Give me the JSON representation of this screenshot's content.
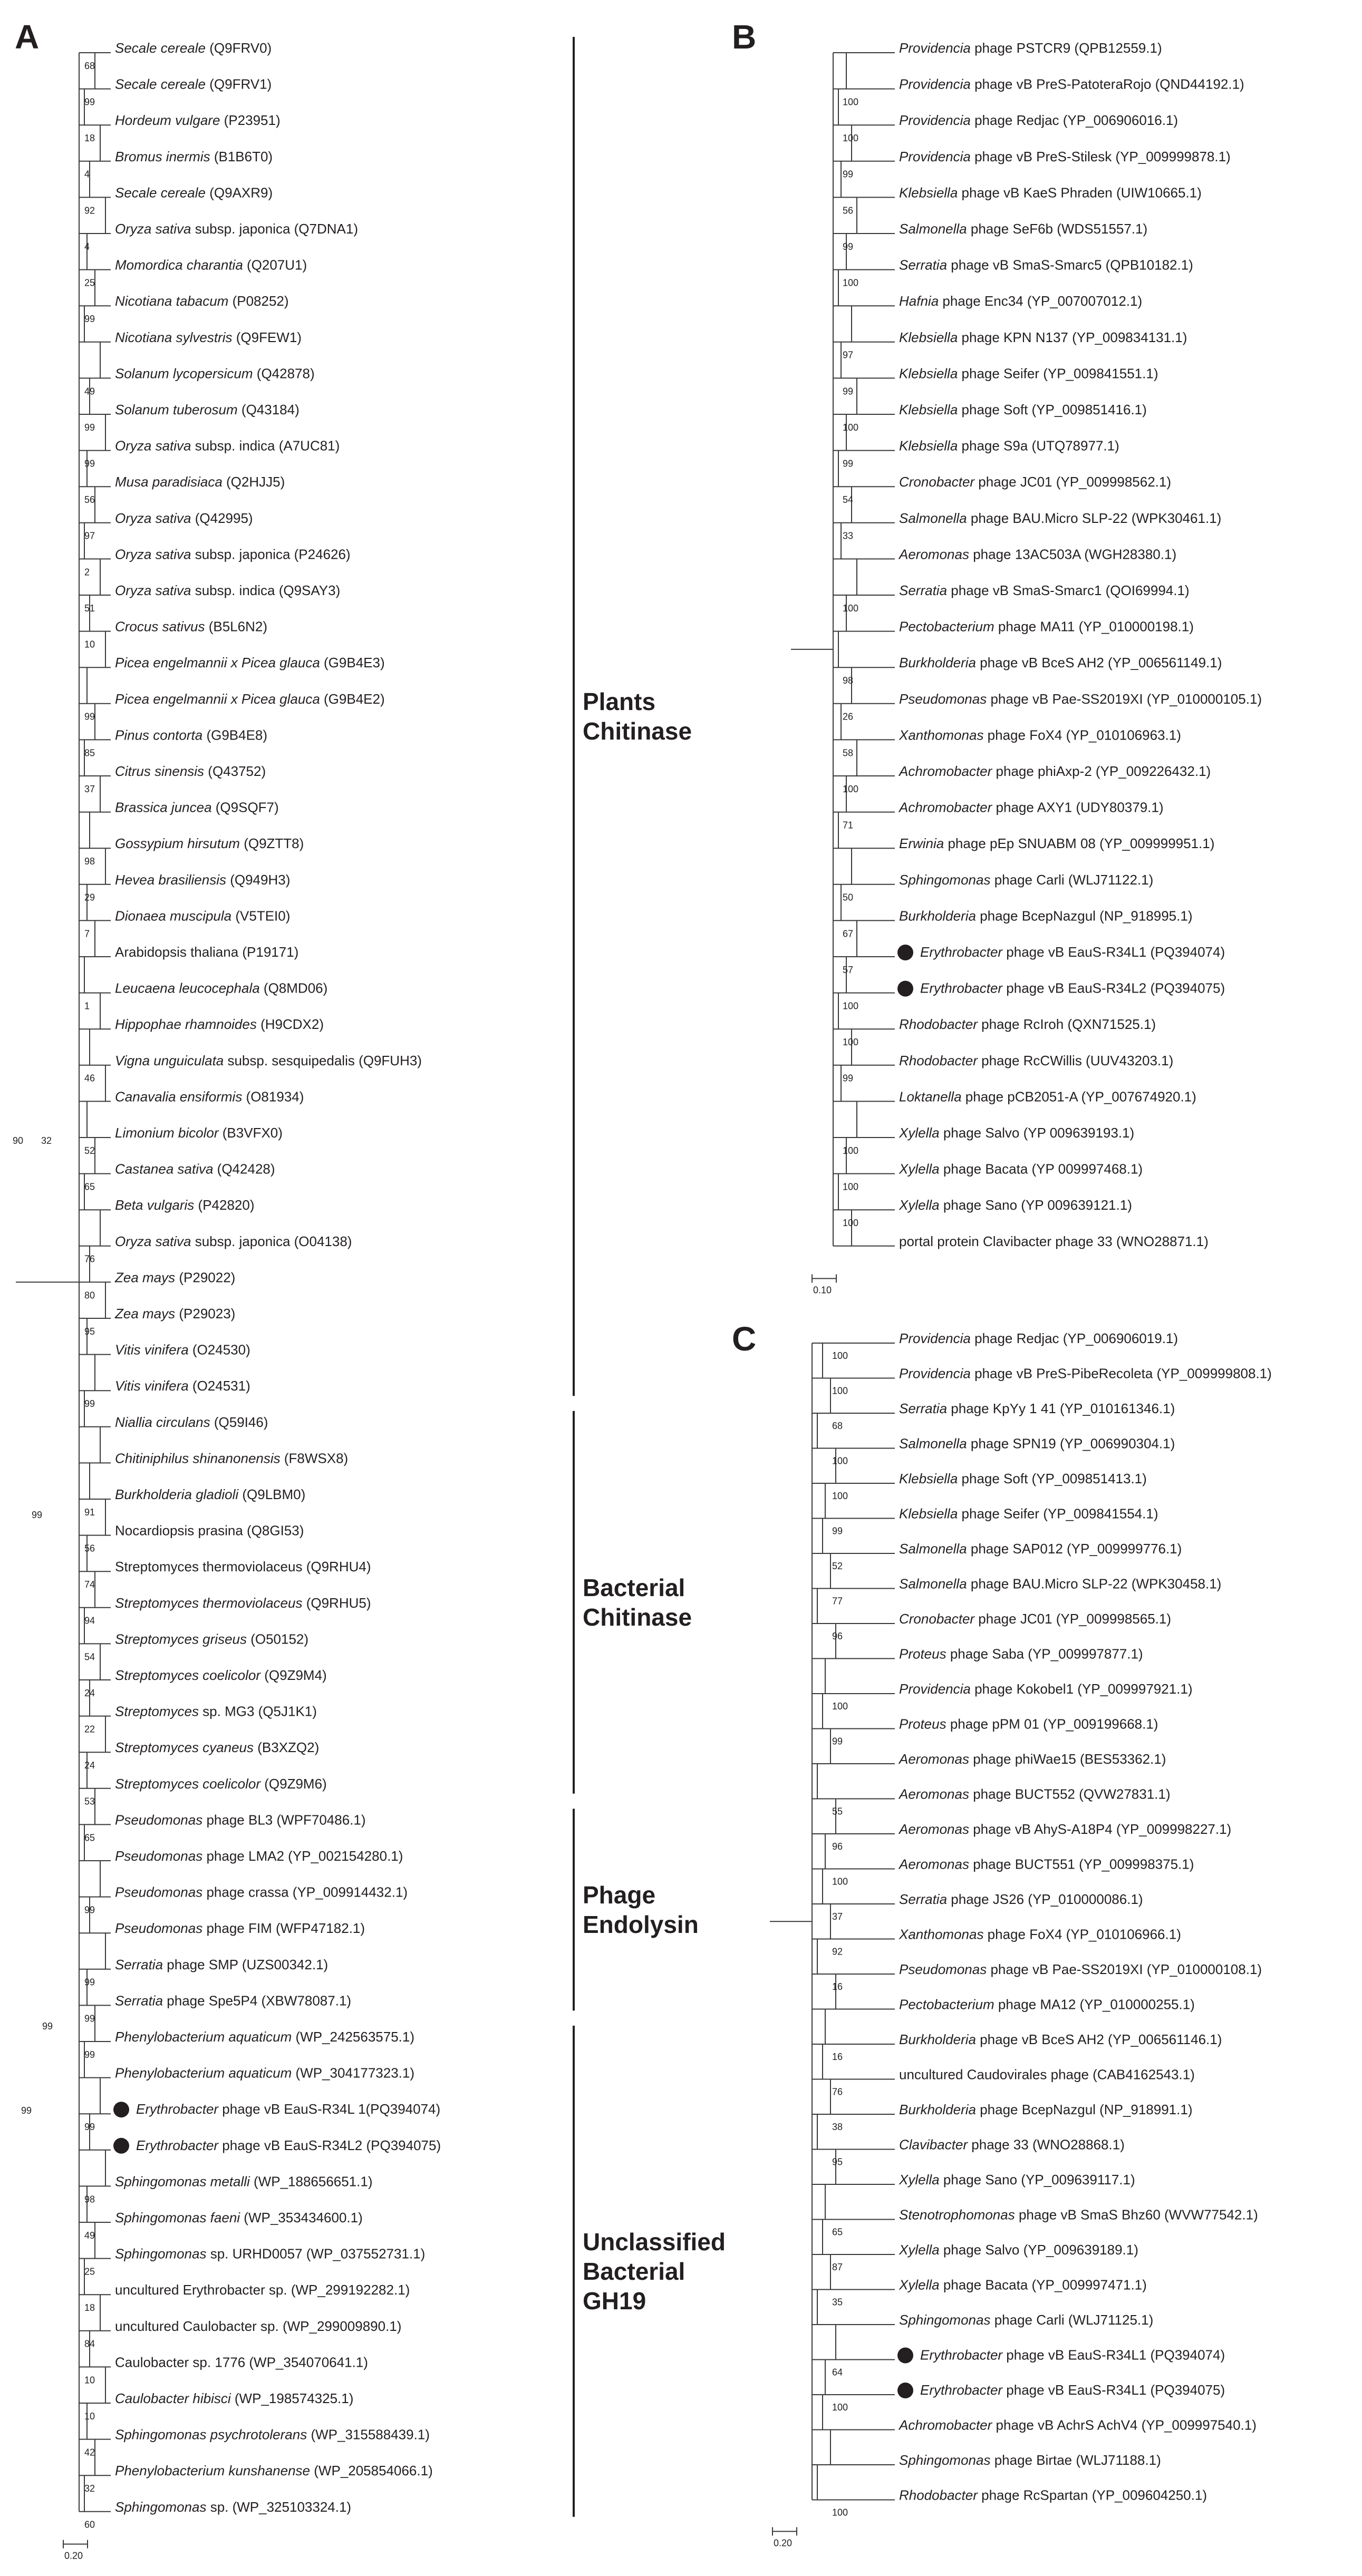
{
  "panels": [
    {
      "label": "A",
      "leaves": [
        {
          "g": "Secale cereale",
          "r": " (Q9FRV0)",
          "b": "68"
        },
        {
          "g": "Secale cereale",
          "r": " (Q9FRV1)",
          "b": "99"
        },
        {
          "g": "Hordeum vulgare",
          "r": " (P23951)",
          "b": "18"
        },
        {
          "g": "Bromus inermis",
          "r": " (B1B6T0)",
          "b": "4"
        },
        {
          "g": "Secale cereale",
          "r": " (Q9AXR9)",
          "b": "92"
        },
        {
          "g": "Oryza sativa",
          "r": " subsp. japonica (Q7DNA1)",
          "b": "4"
        },
        {
          "g": "Momordica charantia",
          "r": " (Q207U1)",
          "b": "25"
        },
        {
          "g": "Nicotiana tabacum",
          "r": " (P08252)",
          "b": "99"
        },
        {
          "g": "Nicotiana sylvestris",
          "r": " (Q9FEW1)",
          "b": ""
        },
        {
          "g": "Solanum lycopersicum",
          "r": " (Q42878)",
          "b": "49"
        },
        {
          "g": "Solanum tuberosum",
          "r": " (Q43184)",
          "b": "99"
        },
        {
          "g": "Oryza sativa",
          "r": " subsp. indica (A7UC81)",
          "b": "99"
        },
        {
          "g": "Musa paradisiaca",
          "r": " (Q2HJJ5)",
          "b": "56"
        },
        {
          "g": "Oryza sativa",
          "r": " (Q42995)",
          "b": "97"
        },
        {
          "g": "Oryza sativa",
          "r": " subsp. japonica (P24626)",
          "b": "2"
        },
        {
          "g": "Oryza sativa",
          "r": " subsp. indica (Q9SAY3)",
          "b": "51"
        },
        {
          "g": "Crocus sativus",
          "r": " (B5L6N2)",
          "b": "10"
        },
        {
          "g": "Picea engelmannii x Picea glauca",
          "r": " (G9B4E3)",
          "b": ""
        },
        {
          "g": "Picea engelmannii x Picea glauca",
          "r": " (G9B4E2)",
          "b": "99"
        },
        {
          "g": "Pinus contorta",
          "r": " (G9B4E8)",
          "b": "85"
        },
        {
          "g": "Citrus sinensis",
          "r": " (Q43752)",
          "b": "37"
        },
        {
          "g": "Brassica juncea",
          "r": " (Q9SQF7)",
          "b": ""
        },
        {
          "g": "Gossypium hirsutum",
          "r": " (Q9ZTT8)",
          "b": "98"
        },
        {
          "g": "Hevea brasiliensis",
          "r": " (Q949H3)",
          "b": "29"
        },
        {
          "g": "Dionaea muscipula",
          "r": " (V5TEI0)",
          "b": "7"
        },
        {
          "g": "",
          "r": "Arabidopsis thaliana (P19171)",
          "b": ""
        },
        {
          "g": "Leucaena leucocephala",
          "r": " (Q8MD06)",
          "b": "1"
        },
        {
          "g": "Hippophae rhamnoides",
          "r": " (H9CDX2)",
          "b": ""
        },
        {
          "g": "Vigna unguiculata",
          "r": " subsp. sesquipedalis (Q9FUH3)",
          "b": "46"
        },
        {
          "g": "Canavalia ensiformis",
          "r": " (O81934)",
          "b": ""
        },
        {
          "g": "Limonium bicolor",
          "r": " (B3VFX0)",
          "b": "52"
        },
        {
          "g": "Castanea sativa",
          "r": " (Q42428)",
          "b": "65"
        },
        {
          "g": "Beta vulgaris",
          "r": " (P42820)",
          "b": ""
        },
        {
          "g": "Oryza sativa",
          "r": " subsp. japonica (O04138)",
          "b": "76"
        },
        {
          "g": "Zea mays",
          "r": " (P29022)",
          "b": "80"
        },
        {
          "g": "Zea mays",
          "r": " (P29023)",
          "b": "95"
        },
        {
          "g": "Vitis vinifera",
          "r": " (O24530)",
          "b": ""
        },
        {
          "g": "Vitis vinifera",
          "r": " (O24531)",
          "b": "99"
        },
        {
          "g": "Niallia circulans",
          "r": " (Q59I46)",
          "b": ""
        },
        {
          "g": "Chitiniphilus shinanonensis",
          "r": " (F8WSX8)",
          "b": ""
        },
        {
          "g": "Burkholderia gladioli",
          "r": " (Q9LBM0)",
          "b": "91"
        },
        {
          "g": "",
          "r": "Nocardiopsis prasina (Q8GI53)",
          "b": "56"
        },
        {
          "g": "",
          "r": "Streptomyces thermoviolaceus (Q9RHU4)",
          "b": "74"
        },
        {
          "g": "Streptomyces thermoviolaceus",
          "r": " (Q9RHU5)",
          "b": "94"
        },
        {
          "g": "Streptomyces griseus",
          "r": " (O50152)",
          "b": "54"
        },
        {
          "g": "Streptomyces coelicolor",
          "r": " (Q9Z9M4)",
          "b": "24"
        },
        {
          "g": "Streptomyces",
          "r": " sp. MG3 (Q5J1K1)",
          "b": "22"
        },
        {
          "g": "Streptomyces cyaneus",
          "r": " (B3XZQ2)",
          "b": "24"
        },
        {
          "g": "Streptomyces coelicolor",
          "r": " (Q9Z9M6)",
          "b": "53"
        },
        {
          "g": "Pseudomonas",
          "r": " phage BL3 (WPF70486.1)",
          "b": "65"
        },
        {
          "g": "Pseudomonas",
          "r": " phage LMA2 (YP_002154280.1)",
          "b": ""
        },
        {
          "g": "Pseudomonas",
          "r": " phage crassa (YP_009914432.1)",
          "b": "99"
        },
        {
          "g": "Pseudomonas",
          "r": " phage FIM (WFP47182.1)",
          "b": ""
        },
        {
          "g": "Serratia",
          "r": " phage SMP (UZS00342.1)",
          "b": "99"
        },
        {
          "g": "Serratia",
          "r": " phage Spe5P4 (XBW78087.1)",
          "b": "99"
        },
        {
          "g": "Phenylobacterium aquaticum",
          "r": " (WP_242563575.1)",
          "b": "99"
        },
        {
          "g": "Phenylobacterium aquaticum",
          "r": " (WP_304177323.1)",
          "b": ""
        },
        {
          "g": "Erythrobacter",
          "r": " phage vB EauS-R34L 1(PQ394074)",
          "b": "99",
          "dot": true
        },
        {
          "g": "Erythrobacter",
          "r": " phage vB EauS-R34L2 (PQ394075)",
          "b": "",
          "dot": true
        },
        {
          "g": "Sphingomonas metalli",
          "r": " (WP_188656651.1)",
          "b": "98"
        },
        {
          "g": "Sphingomonas faeni",
          "r": " (WP_353434600.1)",
          "b": "49"
        },
        {
          "g": "Sphingomonas",
          "r": " sp. URHD0057 (WP_037552731.1)",
          "b": "25"
        },
        {
          "g": "",
          "r": "uncultured Erythrobacter sp. (WP_299192282.1)",
          "b": "18"
        },
        {
          "g": "",
          "r": "uncultured Caulobacter sp. (WP_299009890.1)",
          "b": "84"
        },
        {
          "g": "",
          "r": "Caulobacter sp. 1776 (WP_354070641.1)",
          "b": "10"
        },
        {
          "g": "Caulobacter hibisci",
          "r": " (WP_198574325.1)",
          "b": "10"
        },
        {
          "g": "Sphingomonas psychrotolerans",
          "r": " (WP_315588439.1)",
          "b": "42"
        },
        {
          "g": "Phenylobacterium kunshanense",
          "r": " (WP_205854066.1)",
          "b": "32"
        },
        {
          "g": "Sphingomonas",
          "r": " sp. (WP_325103324.1)",
          "b": "60"
        }
      ],
      "groups": [
        {
          "label1": "Plants",
          "label2": "Chitinase"
        },
        {
          "label1": "Bacterial",
          "label2": "Chitinase"
        },
        {
          "label1": "Phage",
          "label2": "Endolysin"
        },
        {
          "label1": "Unclassified",
          "label2": "Bacterial",
          "label3": "GH19"
        }
      ],
      "extra_bootstrap": [
        "90",
        "32",
        "99",
        "99",
        "99"
      ],
      "scale": "0.20"
    },
    {
      "label": "B",
      "leaves": [
        {
          "g": "Providencia",
          "r": " phage PSTCR9 (QPB12559.1)",
          "b": ""
        },
        {
          "g": "Providencia",
          "r": " phage vB PreS-PatoteraRojo (QND44192.1)",
          "b": "100"
        },
        {
          "g": "Providencia",
          "r": " phage Redjac (YP_006906016.1)",
          "b": "100"
        },
        {
          "g": "Providencia",
          "r": " phage vB PreS-Stilesk (YP_009999878.1)",
          "b": "99"
        },
        {
          "g": "Klebsiella",
          "r": " phage vB KaeS Phraden (UIW10665.1)",
          "b": "56"
        },
        {
          "g": "Salmonella",
          "r": " phage SeF6b (WDS51557.1)",
          "b": "99"
        },
        {
          "g": "Serratia",
          "r": " phage vB SmaS-Smarc5 (QPB10182.1)",
          "b": "100"
        },
        {
          "g": "Hafnia",
          "r": " phage Enc34 (YP_007007012.1)",
          "b": ""
        },
        {
          "g": "Klebsiella",
          "r": " phage KPN N137 (YP_009834131.1)",
          "b": "97"
        },
        {
          "g": "Klebsiella",
          "r": " phage Seifer (YP_009841551.1)",
          "b": "99"
        },
        {
          "g": "Klebsiella",
          "r": " phage Soft (YP_009851416.1)",
          "b": "100"
        },
        {
          "g": "Klebsiella",
          "r": " phage S9a (UTQ78977.1)",
          "b": "99"
        },
        {
          "g": "Cronobacter",
          "r": " phage JC01 (YP_009998562.1)",
          "b": "54"
        },
        {
          "g": "Salmonella",
          "r": " phage BAU.Micro SLP-22 (WPK30461.1)",
          "b": "33"
        },
        {
          "g": "Aeromonas",
          "r": " phage 13AC503A (WGH28380.1)",
          "b": ""
        },
        {
          "g": "Serratia",
          "r": " phage vB SmaS-Smarc1 (QOI69994.1)",
          "b": "100"
        },
        {
          "g": "Pectobacterium",
          "r": " phage MA11 (YP_010000198.1)",
          "b": ""
        },
        {
          "g": "Burkholderia",
          "r": " phage vB BceS AH2 (YP_006561149.1)",
          "b": "98"
        },
        {
          "g": "Pseudomonas",
          "r": " phage vB Pae-SS2019XI (YP_010000105.1)",
          "b": "26"
        },
        {
          "g": "Xanthomonas",
          "r": " phage FoX4 (YP_010106963.1)",
          "b": "58"
        },
        {
          "g": "Achromobacter",
          "r": " phage phiAxp-2 (YP_009226432.1)",
          "b": "100"
        },
        {
          "g": "Achromobacter",
          "r": " phage AXY1 (UDY80379.1)",
          "b": "71"
        },
        {
          "g": "Erwinia",
          "r": " phage pEp SNUABM 08 (YP_009999951.1)",
          "b": ""
        },
        {
          "g": "Sphingomonas",
          "r": " phage Carli (WLJ71122.1)",
          "b": "50"
        },
        {
          "g": "Burkholderia",
          "r": " phage BcepNazgul (NP_918995.1)",
          "b": "67"
        },
        {
          "g": "Erythrobacter",
          "r": " phage vB EauS-R34L1 (PQ394074)",
          "b": "57",
          "dot": true
        },
        {
          "g": "Erythrobacter",
          "r": " phage vB EauS-R34L2 (PQ394075)",
          "b": "100",
          "dot": true
        },
        {
          "g": "Rhodobacter",
          "r": " phage RcIroh (QXN71525.1)",
          "b": "100"
        },
        {
          "g": "Rhodobacter",
          "r": " phage RcCWillis (UUV43203.1)",
          "b": "99"
        },
        {
          "g": "Loktanella",
          "r": " phage pCB2051-A (YP_007674920.1)",
          "b": ""
        },
        {
          "g": "Xylella",
          "r": " phage Salvo (YP 009639193.1)",
          "b": "100"
        },
        {
          "g": "Xylella",
          "r": " phage Bacata (YP 009997468.1)",
          "b": "100"
        },
        {
          "g": "Xylella",
          "r": " phage Sano (YP 009639121.1)",
          "b": "100"
        },
        {
          "g": "",
          "r": "portal protein Clavibacter phage 33 (WNO28871.1)",
          "b": ""
        }
      ],
      "scale": "0.10"
    },
    {
      "label": "C",
      "leaves": [
        {
          "g": "Providencia",
          "r": " phage Redjac (YP_006906019.1)",
          "b": "100"
        },
        {
          "g": "Providencia",
          "r": " phage vB PreS-PibeRecoleta (YP_009999808.1)",
          "b": "100"
        },
        {
          "g": "Serratia",
          "r": " phage KpYy 1 41 (YP_010161346.1)",
          "b": "68"
        },
        {
          "g": "Salmonella",
          "r": " phage SPN19 (YP_006990304.1)",
          "b": "100"
        },
        {
          "g": "Klebsiella",
          "r": " phage Soft (YP_009851413.1)",
          "b": "100"
        },
        {
          "g": "Klebsiella",
          "r": " phage Seifer (YP_009841554.1)",
          "b": "99"
        },
        {
          "g": "Salmonella",
          "r": " phage SAP012 (YP_009999776.1)",
          "b": "52"
        },
        {
          "g": "Salmonella",
          "r": " phage BAU.Micro SLP-22 (WPK30458.1)",
          "b": "77"
        },
        {
          "g": "Cronobacter",
          "r": " phage JC01 (YP_009998565.1)",
          "b": "96"
        },
        {
          "g": "Proteus",
          "r": " phage Saba (YP_009997877.1)",
          "b": ""
        },
        {
          "g": "Providencia",
          "r": " phage Kokobel1 (YP_009997921.1)",
          "b": "100"
        },
        {
          "g": "Proteus",
          "r": " phage pPM 01 (YP_009199668.1)",
          "b": "99"
        },
        {
          "g": "Aeromonas",
          "r": " phage phiWae15 (BES53362.1)",
          "b": ""
        },
        {
          "g": "Aeromonas",
          "r": " phage BUCT552 (QVW27831.1)",
          "b": "55"
        },
        {
          "g": "Aeromonas",
          "r": " phage vB AhyS-A18P4 (YP_009998227.1)",
          "b": "96"
        },
        {
          "g": "Aeromonas",
          "r": " phage BUCT551 (YP_009998375.1)",
          "b": "100"
        },
        {
          "g": "Serratia",
          "r": " phage JS26 (YP_010000086.1)",
          "b": "37"
        },
        {
          "g": "Xanthomonas",
          "r": " phage FoX4 (YP_010106966.1)",
          "b": "92"
        },
        {
          "g": "Pseudomonas",
          "r": " phage vB Pae-SS2019XI (YP_010000108.1)",
          "b": "16"
        },
        {
          "g": "Pectobacterium",
          "r": " phage MA12 (YP_010000255.1)",
          "b": ""
        },
        {
          "g": "Burkholderia",
          "r": " phage vB BceS AH2 (YP_006561146.1)",
          "b": "16"
        },
        {
          "g": "",
          "r": "uncultured Caudovirales phage (CAB4162543.1)",
          "b": "76"
        },
        {
          "g": "Burkholderia",
          "r": " phage BcepNazgul (NP_918991.1)",
          "b": "38"
        },
        {
          "g": "Clavibacter",
          "r": " phage 33 (WNO28868.1)",
          "b": "95"
        },
        {
          "g": "Xylella",
          "r": " phage Sano (YP_009639117.1)",
          "b": ""
        },
        {
          "g": "Stenotrophomonas",
          "r": " phage vB SmaS Bhz60 (WVW77542.1)",
          "b": "65"
        },
        {
          "g": "Xylella",
          "r": " phage Salvo (YP_009639189.1)",
          "b": "87"
        },
        {
          "g": "Xylella",
          "r": " phage Bacata (YP_009997471.1)",
          "b": "35"
        },
        {
          "g": "Sphingomonas",
          "r": " phage Carli (WLJ71125.1)",
          "b": ""
        },
        {
          "g": "Erythrobacter",
          "r": " phage vB EauS-R34L1 (PQ394074)",
          "b": "64",
          "dot": true
        },
        {
          "g": "Erythrobacter",
          "r": " phage vB EauS-R34L1 (PQ394075)",
          "b": "100",
          "dot": true
        },
        {
          "g": "Achromobacter",
          "r": " phage vB AchrS AchV4 (YP_009997540.1)",
          "b": ""
        },
        {
          "g": "Sphingomonas",
          "r": " phage Birtae (WLJ71188.1)",
          "b": ""
        },
        {
          "g": "Rhodobacter",
          "r": " phage RcSpartan (YP_009604250.1)",
          "b": "100"
        }
      ],
      "scale": "0.20"
    }
  ]
}
